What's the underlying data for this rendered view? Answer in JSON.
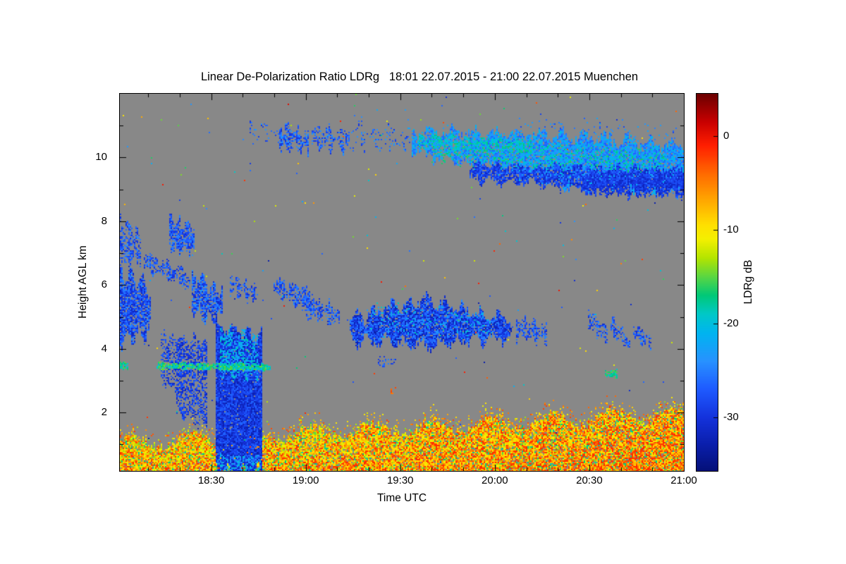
{
  "chart_data": {
    "type": "heatmap",
    "title": "Linear De-Polarization Ratio LDRg   18:01 22.07.2015 - 21:00 22.07.2015 Muenchen",
    "xlabel": "Time UTC",
    "ylabel": "Height AGL km",
    "colorbar_label": "LDRg dB",
    "x_unit": "minutes after 18:00 UTC",
    "xlim": [
      1,
      180
    ],
    "ylim": [
      0.17,
      12.0
    ],
    "value_range": [
      -35.7,
      4.5
    ],
    "background_color": "#888888",
    "x_ticks": [
      {
        "value": 30,
        "label": "18:30"
      },
      {
        "value": 60,
        "label": "19:00"
      },
      {
        "value": 90,
        "label": "19:30"
      },
      {
        "value": 120,
        "label": "20:00"
      },
      {
        "value": 150,
        "label": "20:30"
      },
      {
        "value": 180,
        "label": "21:00"
      }
    ],
    "x_minor_step": 10,
    "y_ticks": [
      {
        "value": 2,
        "label": "2"
      },
      {
        "value": 4,
        "label": "4"
      },
      {
        "value": 6,
        "label": "6"
      },
      {
        "value": 8,
        "label": "8"
      },
      {
        "value": 10,
        "label": "10"
      }
    ],
    "y_minor_step": 1,
    "colorbar_ticks": [
      {
        "value": 0,
        "label": "0"
      },
      {
        "value": -10,
        "label": "-10"
      },
      {
        "value": -20,
        "label": "-20"
      },
      {
        "value": -30,
        "label": "-30"
      }
    ],
    "colormap": [
      [
        4.5,
        "#6b0000"
      ],
      [
        1.5,
        "#c80000"
      ],
      [
        -1,
        "#ff1e00"
      ],
      [
        -4,
        "#ff6a00"
      ],
      [
        -7,
        "#ffaa00"
      ],
      [
        -9.5,
        "#ffe000"
      ],
      [
        -11,
        "#f4f000"
      ],
      [
        -13,
        "#b4e400"
      ],
      [
        -15,
        "#5ad642"
      ],
      [
        -17,
        "#00c878"
      ],
      [
        -19,
        "#00c8c8"
      ],
      [
        -21,
        "#00b4f0"
      ],
      [
        -24,
        "#2892ff"
      ],
      [
        -27,
        "#1e5aff"
      ],
      [
        -30,
        "#1432dc"
      ],
      [
        -33,
        "#0a1eaa"
      ],
      [
        -35.7,
        "#041078"
      ]
    ],
    "features": [
      {
        "type": "noise",
        "density": 0.002,
        "vmin": -33,
        "vmax": 1
      },
      {
        "type": "layer",
        "t0": 1,
        "t1": 180,
        "h_base": 0.17,
        "top_base": 1.02,
        "top_slope": 0.0052,
        "wiggle_amp": 0.22,
        "wiggle_freq": 0.33,
        "jitter": 0.25,
        "fringe": 0.45,
        "density": 0.93,
        "vmin": -14,
        "vmax": -2,
        "cool_frac": 0.13,
        "cool_vmin": -19,
        "cool_vmax": -13,
        "warm_slope": 2.5,
        "warm_bottom": 2.0
      },
      {
        "type": "cloud",
        "t0": 1,
        "t1": 11,
        "top0": 6.4,
        "top1": 5.9,
        "bot0": 4.25,
        "bot1": 4.6,
        "density": 0.85,
        "vmin": -32,
        "vmax": -24,
        "wiggle": 0.25,
        "wfreq": 1.7,
        "jitter": 0.3
      },
      {
        "type": "cloud",
        "t0": 1,
        "t1": 8,
        "top0": 8.05,
        "top1": 7.5,
        "bot0": 6.6,
        "bot1": 6.9,
        "density": 0.55,
        "vmin": -31,
        "vmax": -24,
        "wiggle": 0.2,
        "wfreq": 2.1,
        "jitter": 0.35
      },
      {
        "type": "cloud",
        "t0": 9,
        "t1": 24,
        "top0": 7.0,
        "top1": 6.35,
        "bot0": 6.5,
        "bot1": 5.95,
        "density": 0.5,
        "vmin": -31,
        "vmax": -24,
        "wiggle": 0.12,
        "wfreq": 1.3,
        "jitter": 0.2
      },
      {
        "type": "cloud",
        "t0": 17,
        "t1": 25,
        "top0": 8.05,
        "top1": 7.75,
        "bot0": 7.15,
        "bot1": 7.1,
        "density": 0.75,
        "vmin": -31,
        "vmax": -24,
        "wiggle": 0.15,
        "wfreq": 2.3,
        "jitter": 0.25
      },
      {
        "type": "cloud",
        "t0": 24,
        "t1": 34,
        "top0": 6.3,
        "top1": 5.7,
        "bot0": 5.15,
        "bot1": 4.9,
        "density": 0.8,
        "vmin": -32,
        "vmax": -23,
        "wiggle": 0.2,
        "wfreq": 1.9,
        "jitter": 0.3
      },
      {
        "type": "cloud",
        "t0": 36,
        "t1": 45,
        "top0": 6.25,
        "top1": 5.85,
        "bot0": 5.85,
        "bot1": 5.5,
        "density": 0.6,
        "vmin": -31,
        "vmax": -24,
        "wiggle": 0.1,
        "wfreq": 2.5,
        "jitter": 0.2
      },
      {
        "type": "cloud",
        "t0": 14,
        "t1": 22,
        "top0": 4.4,
        "top1": 4.3,
        "bot0": 3.0,
        "bot1": 2.6,
        "density": 0.4,
        "vmin": -32,
        "vmax": -26,
        "wiggle": 0.15,
        "wfreq": 1.8,
        "jitter": 0.3
      },
      {
        "type": "cloud",
        "t0": 19,
        "t1": 29,
        "top0": 4.3,
        "top1": 4.2,
        "bot0": 2.0,
        "bot1": 1.55,
        "density": 0.5,
        "vmin": -32,
        "vmax": -26,
        "wiggle": 0.15,
        "wfreq": 1.6,
        "jitter": 0.3
      },
      {
        "type": "cloud",
        "t0": 50,
        "t1": 63,
        "top0": 6.15,
        "top1": 5.7,
        "bot0": 5.7,
        "bot1": 5.25,
        "density": 0.65,
        "vmin": -31,
        "vmax": -24,
        "wiggle": 0.12,
        "wfreq": 1.6,
        "jitter": 0.25
      },
      {
        "type": "cloud",
        "t0": 59,
        "t1": 71,
        "top0": 5.6,
        "top1": 5.3,
        "bot0": 5.1,
        "bot1": 4.8,
        "density": 0.5,
        "vmin": -31,
        "vmax": -24,
        "wiggle": 0.12,
        "wfreq": 1.8,
        "jitter": 0.25
      },
      {
        "type": "cloud",
        "t0": 74,
        "t1": 98,
        "top0": 4.95,
        "top1": 5.55,
        "bot0": 4.3,
        "bot1": 4.15,
        "density": 0.92,
        "vmin": -33,
        "vmax": -24,
        "wiggle": 0.18,
        "wfreq": 1.1,
        "jitter": 0.3
      },
      {
        "type": "cloud",
        "t0": 98,
        "t1": 126,
        "top0": 5.55,
        "top1": 4.8,
        "bot0": 4.15,
        "bot1": 4.4,
        "density": 0.92,
        "vmin": -33,
        "vmax": -24,
        "wiggle": 0.18,
        "wfreq": 1.1,
        "jitter": 0.3
      },
      {
        "type": "cloud",
        "t0": 80,
        "t1": 120,
        "top0": 5.3,
        "top1": 5.2,
        "bot0": 4.5,
        "bot1": 4.4,
        "density": 0.1,
        "vmin": -23,
        "vmax": -18,
        "wiggle": 0.1,
        "wfreq": 1.0,
        "jitter": 0.2
      },
      {
        "type": "cloud",
        "t0": 127,
        "t1": 137,
        "top0": 4.95,
        "top1": 4.6,
        "bot0": 4.4,
        "bot1": 4.3,
        "density": 0.55,
        "vmin": -31,
        "vmax": -24,
        "wiggle": 0.12,
        "wfreq": 2.0,
        "jitter": 0.25
      },
      {
        "type": "cloud",
        "t0": 83,
        "t1": 89,
        "top0": 3.75,
        "top1": 3.7,
        "bot0": 3.5,
        "bot1": 3.45,
        "density": 0.3,
        "vmin": -30,
        "vmax": -24,
        "wiggle": 0.05,
        "wfreq": 1.0,
        "jitter": 0.1
      },
      {
        "type": "cloud",
        "t0": 87,
        "t1": 89,
        "top0": 2.75,
        "top1": 2.72,
        "bot0": 2.6,
        "bot1": 2.58,
        "density": 0.5,
        "vmin": -6,
        "vmax": -2,
        "wiggle": 0.02,
        "wfreq": 1.0,
        "jitter": 0.05
      },
      {
        "type": "cloud",
        "t0": 150,
        "t1": 156,
        "top0": 5.15,
        "top1": 4.6,
        "bot0": 4.7,
        "bot1": 4.2,
        "density": 0.55,
        "vmin": -31,
        "vmax": -24,
        "wiggle": 0.08,
        "wfreq": 2.2,
        "jitter": 0.15
      },
      {
        "type": "cloud",
        "t0": 157,
        "t1": 163,
        "top0": 4.95,
        "top1": 4.35,
        "bot0": 4.5,
        "bot1": 3.95,
        "density": 0.5,
        "vmin": -31,
        "vmax": -24,
        "wiggle": 0.08,
        "wfreq": 2.2,
        "jitter": 0.15
      },
      {
        "type": "cloud",
        "t0": 164,
        "t1": 170,
        "top0": 4.75,
        "top1": 4.3,
        "bot0": 4.4,
        "bot1": 4.0,
        "density": 0.45,
        "vmin": -31,
        "vmax": -24,
        "wiggle": 0.08,
        "wfreq": 2.2,
        "jitter": 0.15
      },
      {
        "type": "cloud",
        "t0": 155,
        "t1": 159,
        "top0": 3.32,
        "top1": 3.28,
        "bot0": 3.12,
        "bot1": 3.1,
        "density": 0.7,
        "vmin": -19,
        "vmax": -15,
        "wiggle": 0.03,
        "wfreq": 1.0,
        "jitter": 0.05
      },
      {
        "type": "cloud",
        "t0": 40,
        "t1": 52,
        "top0": 11.2,
        "top1": 10.9,
        "bot0": 10.7,
        "bot1": 10.5,
        "density": 0.12,
        "vmin": -30,
        "vmax": -23,
        "wiggle": 0.1,
        "wfreq": 1.5,
        "jitter": 0.3
      },
      {
        "type": "cloud",
        "t0": 52,
        "t1": 61,
        "top0": 10.95,
        "top1": 10.7,
        "bot0": 10.3,
        "bot1": 10.25,
        "density": 0.7,
        "vmin": -31,
        "vmax": -23,
        "wiggle": 0.15,
        "wfreq": 2.0,
        "jitter": 0.25
      },
      {
        "type": "cloud",
        "t0": 62,
        "t1": 74,
        "top0": 10.9,
        "top1": 10.75,
        "bot0": 10.4,
        "bot1": 10.3,
        "density": 0.5,
        "vmin": -31,
        "vmax": -23,
        "wiggle": 0.15,
        "wfreq": 1.7,
        "jitter": 0.25
      },
      {
        "type": "cloud",
        "t0": 74,
        "t1": 94,
        "top0": 11.0,
        "top1": 10.9,
        "bot0": 10.3,
        "bot1": 10.4,
        "density": 0.18,
        "vmin": -30,
        "vmax": -23,
        "wiggle": 0.15,
        "wfreq": 1.4,
        "jitter": 0.3
      },
      {
        "type": "cloud",
        "t0": 94,
        "t1": 140,
        "top0": 10.8,
        "top1": 10.7,
        "bot0": 10.2,
        "bot1": 9.2,
        "density": 0.85,
        "vmin": -27,
        "vmax": -20,
        "wiggle": 0.15,
        "wfreq": 0.9,
        "jitter": 0.3
      },
      {
        "type": "cloud",
        "t0": 140,
        "t1": 180,
        "top0": 10.7,
        "top1": 10.35,
        "bot0": 9.2,
        "bot1": 9.0,
        "density": 0.9,
        "vmin": -27,
        "vmax": -20,
        "wiggle": 0.15,
        "wfreq": 0.9,
        "jitter": 0.3
      },
      {
        "type": "cloud",
        "t0": 96,
        "t1": 132,
        "top0": 10.65,
        "top1": 10.55,
        "bot0": 10.35,
        "bot1": 10.2,
        "density": 0.5,
        "vmin": -21,
        "vmax": -17,
        "wiggle": 0.08,
        "wfreq": 1.2,
        "jitter": 0.15
      },
      {
        "type": "cloud",
        "t0": 112,
        "t1": 180,
        "top0": 9.75,
        "top1": 9.6,
        "bot0": 9.35,
        "bot1": 8.85,
        "density": 0.8,
        "vmin": -32,
        "vmax": -26,
        "wiggle": 0.12,
        "wfreq": 1.0,
        "jitter": 0.25
      },
      {
        "type": "cloud",
        "t0": 148,
        "t1": 180,
        "top0": 9.4,
        "top1": 9.45,
        "bot0": 8.85,
        "bot1": 8.95,
        "density": 0.7,
        "vmin": -32,
        "vmax": -27,
        "wiggle": 0.12,
        "wfreq": 1.1,
        "jitter": 0.25
      },
      {
        "type": "cloud",
        "t0": 100,
        "t1": 175,
        "top0": 10.5,
        "top1": 10.2,
        "bot0": 9.9,
        "bot1": 9.6,
        "density": 0.22,
        "vmin": -20,
        "vmax": -16,
        "wiggle": 0.1,
        "wfreq": 1.3,
        "jitter": 0.2
      },
      {
        "type": "cloud",
        "t0": 128,
        "t1": 178,
        "top0": 11.25,
        "top1": 10.9,
        "bot0": 10.85,
        "bot1": 10.5,
        "density": 0.06,
        "vmin": -29,
        "vmax": -22,
        "wiggle": 0.1,
        "wfreq": 1.5,
        "jitter": 0.3
      },
      {
        "type": "cloud",
        "t0": 31.5,
        "t1": 46.5,
        "top0": 4.7,
        "top1": 4.35,
        "bot0": 0.17,
        "bot1": 0.17,
        "density": 0.96,
        "vmin": -33,
        "vmax": -26,
        "wiggle": 0.2,
        "wfreq": 1.4,
        "jitter": 0.3
      },
      {
        "type": "cloud",
        "t0": 33,
        "t1": 45,
        "top0": 4.6,
        "top1": 4.3,
        "bot0": 3.15,
        "bot1": 3.1,
        "density": 0.45,
        "vmin": -24,
        "vmax": -18,
        "wiggle": 0.15,
        "wfreq": 1.6,
        "jitter": 0.2
      },
      {
        "type": "cloud",
        "t0": 32,
        "t1": 46,
        "top0": 0.65,
        "top1": 0.6,
        "bot0": 0.17,
        "bot1": 0.17,
        "density": 0.35,
        "vmin": -25,
        "vmax": -19,
        "wiggle": 0.05,
        "wfreq": 1.0,
        "jitter": 0.1
      },
      {
        "type": "cloud",
        "t0": 13,
        "t1": 49,
        "top0": 3.55,
        "top1": 3.5,
        "bot0": 3.38,
        "bot1": 3.34,
        "density": 0.85,
        "vmin": -21,
        "vmax": -14,
        "wiggle": 0.02,
        "wfreq": 1.0,
        "jitter": 0.04
      },
      {
        "type": "cloud",
        "t0": 1,
        "t1": 4,
        "top0": 3.55,
        "top1": 3.53,
        "bot0": 3.4,
        "bot1": 3.38,
        "density": 0.8,
        "vmin": -20,
        "vmax": -15,
        "wiggle": 0.02,
        "wfreq": 1.0,
        "jitter": 0.04
      }
    ]
  }
}
